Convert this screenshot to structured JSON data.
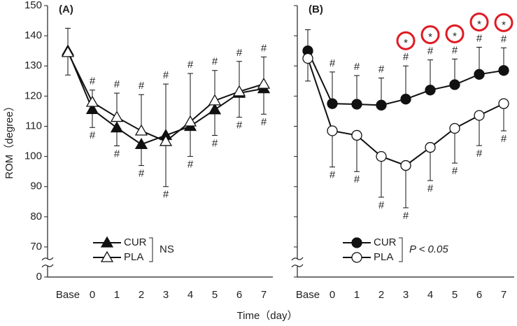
{
  "chart_data": [
    {
      "type": "line",
      "title": "(A)",
      "ylabel": "ROM（degree）",
      "xlabel": "Time（day）",
      "categories": [
        "Base",
        "0",
        "1",
        "2",
        "3",
        "4",
        "5",
        "6",
        "7"
      ],
      "ylim": [
        0,
        150
      ],
      "yticks": [
        0,
        70,
        80,
        90,
        100,
        110,
        120,
        130,
        140,
        150
      ],
      "axis_break": [
        0,
        70
      ],
      "ytick_labels": true,
      "series": [
        {
          "name": "CUR",
          "color": "#111111",
          "marker": "triangle",
          "filled": true,
          "error_direction": "down",
          "values": [
            135,
            115.6,
            109.5,
            104,
            107,
            110,
            115.5,
            121,
            122.5
          ],
          "errors": [
            8,
            6,
            6,
            7,
            17,
            10,
            8.5,
            8,
            8.5
          ],
          "annotations": [
            null,
            "#",
            "#",
            "#",
            "#",
            "#",
            "#",
            "#",
            "#"
          ]
        },
        {
          "name": "PLA",
          "color": "#111111",
          "marker": "triangle",
          "filled": false,
          "error_direction": "up",
          "values": [
            134.5,
            118,
            113,
            108.5,
            105,
            111.5,
            118.5,
            121.5,
            124
          ],
          "errors": [
            8,
            4,
            8,
            12,
            19,
            16,
            10,
            10,
            9
          ],
          "annotations": [
            null,
            "#",
            "#",
            "#",
            "#",
            "#",
            "#",
            "#",
            "#"
          ]
        }
      ],
      "legend_note": "NS"
    },
    {
      "type": "line",
      "title": "(B)",
      "categories": [
        "Base",
        "0",
        "1",
        "2",
        "3",
        "4",
        "5",
        "6",
        "7"
      ],
      "ylim": [
        0,
        150
      ],
      "yticks": [
        0,
        70,
        80,
        90,
        100,
        110,
        120,
        130,
        140,
        150
      ],
      "axis_break": [
        0,
        70
      ],
      "ytick_labels": false,
      "series": [
        {
          "name": "CUR",
          "color": "#111111",
          "marker": "circle",
          "filled": true,
          "error_direction": "up",
          "values": [
            135,
            117.5,
            117.3,
            117,
            119,
            122,
            123.8,
            127.2,
            128.5
          ],
          "errors": [
            7,
            10.5,
            9.5,
            9,
            11,
            10,
            8.5,
            9,
            7.5
          ],
          "annotations": [
            null,
            "#",
            "#",
            "#",
            "#",
            "#",
            "#",
            "#",
            "#"
          ],
          "stars": [
            null,
            null,
            null,
            null,
            "*",
            "*",
            "*",
            "*",
            "*"
          ],
          "star_ring_color": "#e01b24"
        },
        {
          "name": "PLA",
          "color": "#111111",
          "marker": "circle",
          "filled": false,
          "error_direction": "down",
          "values": [
            132.5,
            108.5,
            107,
            100,
            97,
            103,
            109.3,
            113.6,
            117.5
          ],
          "errors": [
            7.5,
            12,
            12,
            13.5,
            14,
            11,
            11.5,
            10,
            9
          ],
          "annotations": [
            null,
            "#",
            "#",
            "#",
            "#",
            "#",
            "#",
            "#",
            "#"
          ]
        }
      ],
      "legend_note": "P < 0.05"
    }
  ]
}
